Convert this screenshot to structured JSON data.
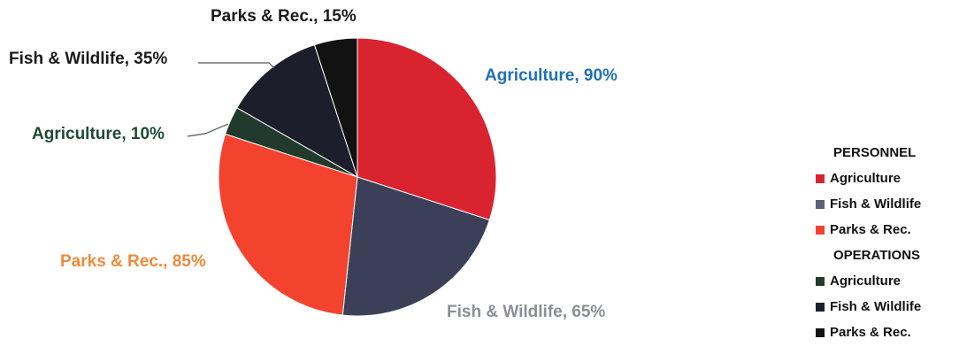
{
  "chart_data": {
    "type": "pie",
    "title": "",
    "groups": [
      "PERSONNEL",
      "OPERATIONS"
    ],
    "slices": [
      {
        "group": "PERSONNEL",
        "name": "Agriculture",
        "label": "Agriculture, 90%",
        "value": 30,
        "color": "#d9232f",
        "label_color": "#1f6fb4"
      },
      {
        "group": "PERSONNEL",
        "name": "Fish & Wildlife",
        "label": "Fish & Wildlife, 65%",
        "value": 21.7,
        "color": "#3b3f58",
        "label_color": "#8a8f96"
      },
      {
        "group": "PERSONNEL",
        "name": "Parks & Rec.",
        "label": "Parks & Rec., 85%",
        "value": 28.3,
        "color": "#f3432f",
        "label_color": "#f08a3a"
      },
      {
        "group": "OPERATIONS",
        "name": "Agriculture",
        "label": "Agriculture, 10%",
        "value": 3.3,
        "color": "#223a2e",
        "label_color": "#1f4a35"
      },
      {
        "group": "OPERATIONS",
        "name": "Fish & Wildlife",
        "label": "Fish & Wildlife, 35%",
        "value": 11.7,
        "color": "#1c1f2b",
        "label_color": "#1a1a1a"
      },
      {
        "group": "OPERATIONS",
        "name": "Parks & Rec.",
        "label": "Parks & Rec., 15%",
        "value": 5,
        "color": "#121212",
        "label_color": "#1a1a1a"
      }
    ],
    "legend_position": "right"
  },
  "legend": {
    "personnel_heading": "PERSONNEL",
    "operations_heading": "OPERATIONS",
    "personnel_items": [
      {
        "label": "Agriculture",
        "color": "#d9232f"
      },
      {
        "label": "Fish & Wildlife",
        "color": "#5b5f78"
      },
      {
        "label": "Parks & Rec.",
        "color": "#f3432f"
      }
    ],
    "operations_items": [
      {
        "label": "Agriculture",
        "color": "#223a2e"
      },
      {
        "label": "Fish & Wildlife",
        "color": "#1c1f2b"
      },
      {
        "label": "Parks & Rec.",
        "color": "#121212"
      }
    ]
  }
}
